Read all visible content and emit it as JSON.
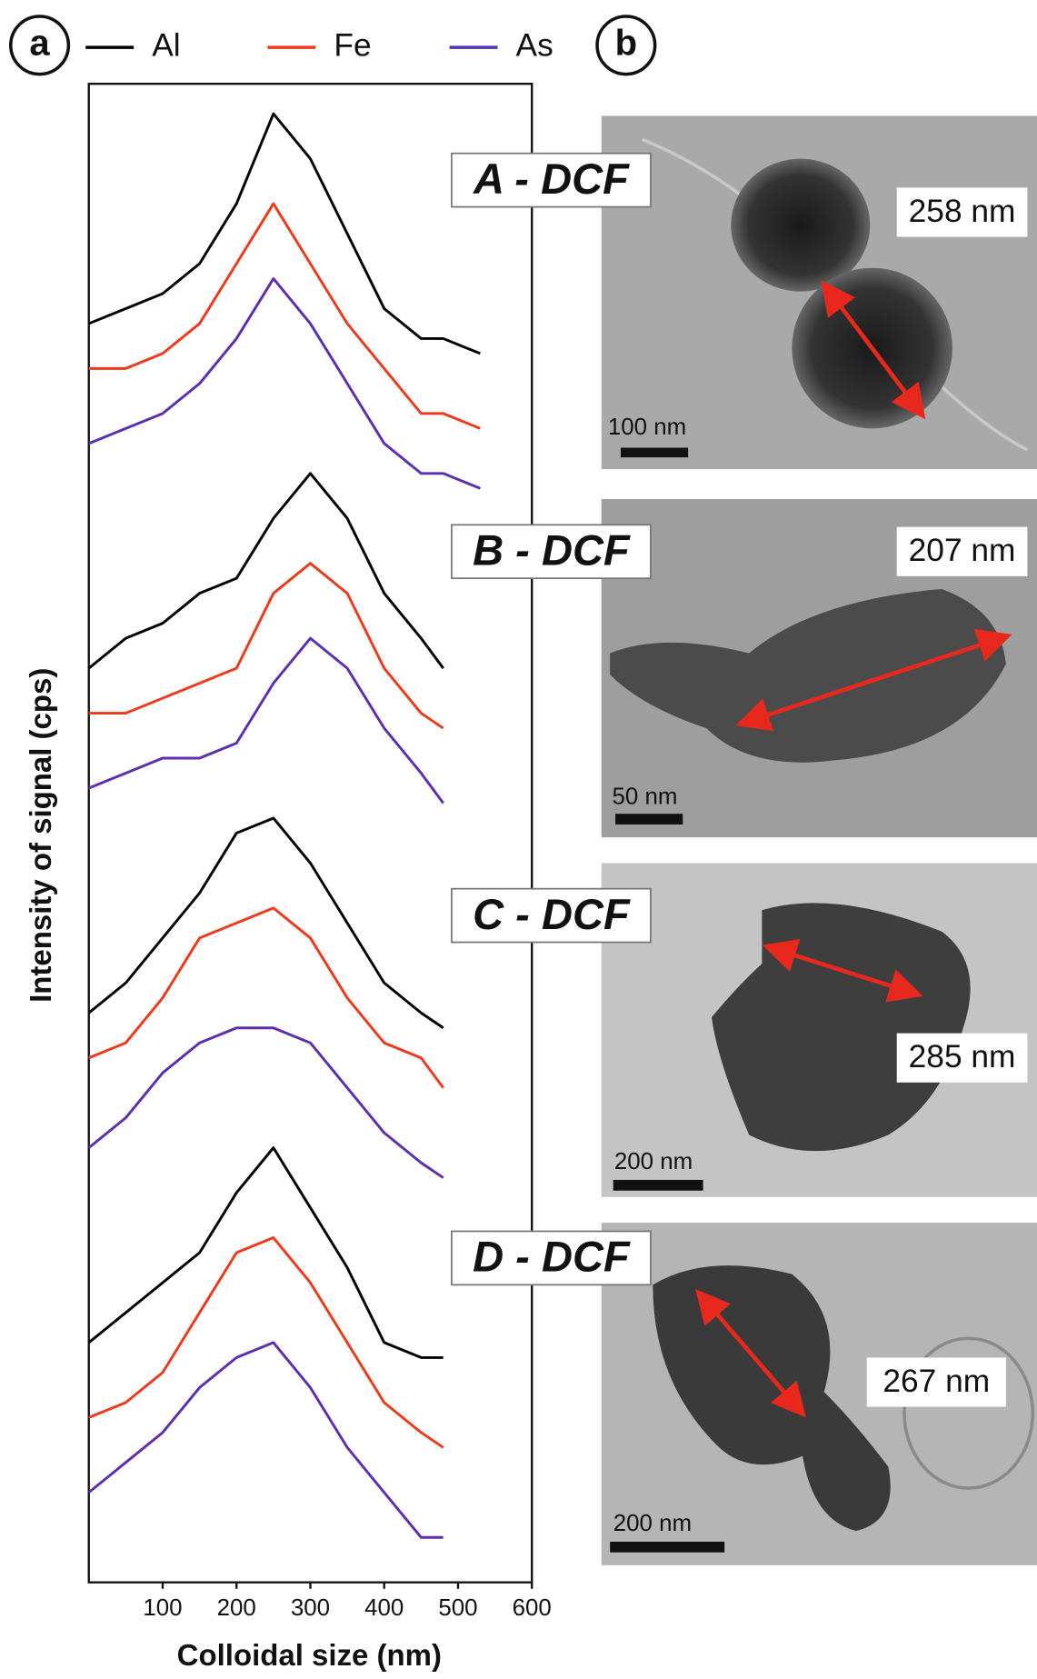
{
  "chart_data": {
    "type": "line",
    "panel_tag": "a",
    "image_panel_tag": "b",
    "xlabel": "Colloidal size (nm)",
    "ylabel": "Intensity of signal (cps)",
    "xlim": [
      0,
      600
    ],
    "xticks": [
      100,
      200,
      300,
      400,
      500,
      600
    ],
    "ylim": [
      0,
      100
    ],
    "x": [
      0,
      50,
      100,
      150,
      200,
      250,
      300,
      350,
      400,
      450,
      480,
      530
    ],
    "series": [
      {
        "name": "Al",
        "color": "#000000"
      },
      {
        "name": "Fe",
        "color": "#ee3a1c"
      },
      {
        "name": "As",
        "color": "#5b2fb0"
      }
    ],
    "panels": [
      {
        "label": "A - DCF",
        "size_label": "258 nm",
        "scale_label": "100 nm",
        "values": [
          [
            84,
            85,
            86,
            88,
            92,
            98,
            95,
            90,
            85,
            83,
            83,
            82
          ],
          [
            81,
            81,
            82,
            84,
            88,
            92,
            88,
            84,
            81,
            78,
            78,
            77
          ],
          [
            76,
            77,
            78,
            80,
            83,
            87,
            84,
            80,
            76,
            74,
            74,
            73
          ]
        ]
      },
      {
        "label": "B - DCF",
        "size_label": "207 nm",
        "scale_label": "50 nm",
        "values": [
          [
            61,
            63,
            64,
            66,
            67,
            71,
            74,
            71,
            66,
            63,
            61,
            null
          ],
          [
            58,
            58,
            59,
            60,
            61,
            66,
            68,
            66,
            61,
            58,
            57,
            null
          ],
          [
            53,
            54,
            55,
            55,
            56,
            60,
            63,
            61,
            57,
            54,
            52,
            null
          ]
        ]
      },
      {
        "label": "C - DCF",
        "size_label": "285 nm",
        "scale_label": "200 nm",
        "values": [
          [
            38,
            40,
            43,
            46,
            50,
            51,
            48,
            44,
            40,
            38,
            37,
            null
          ],
          [
            35,
            36,
            39,
            43,
            44,
            45,
            43,
            39,
            36,
            35,
            33,
            null
          ],
          [
            29,
            31,
            34,
            36,
            37,
            37,
            36,
            33,
            30,
            28,
            27,
            null
          ]
        ]
      },
      {
        "label": "D - DCF",
        "size_label": "267 nm",
        "scale_label": "200 nm",
        "values": [
          [
            16,
            18,
            20,
            22,
            26,
            29,
            25,
            21,
            16,
            15,
            15,
            null
          ],
          [
            11,
            12,
            14,
            18,
            22,
            23,
            20,
            16,
            12,
            10,
            9,
            null
          ],
          [
            6,
            8,
            10,
            13,
            15,
            16,
            13,
            9,
            6,
            3,
            3,
            null
          ]
        ]
      }
    ]
  }
}
